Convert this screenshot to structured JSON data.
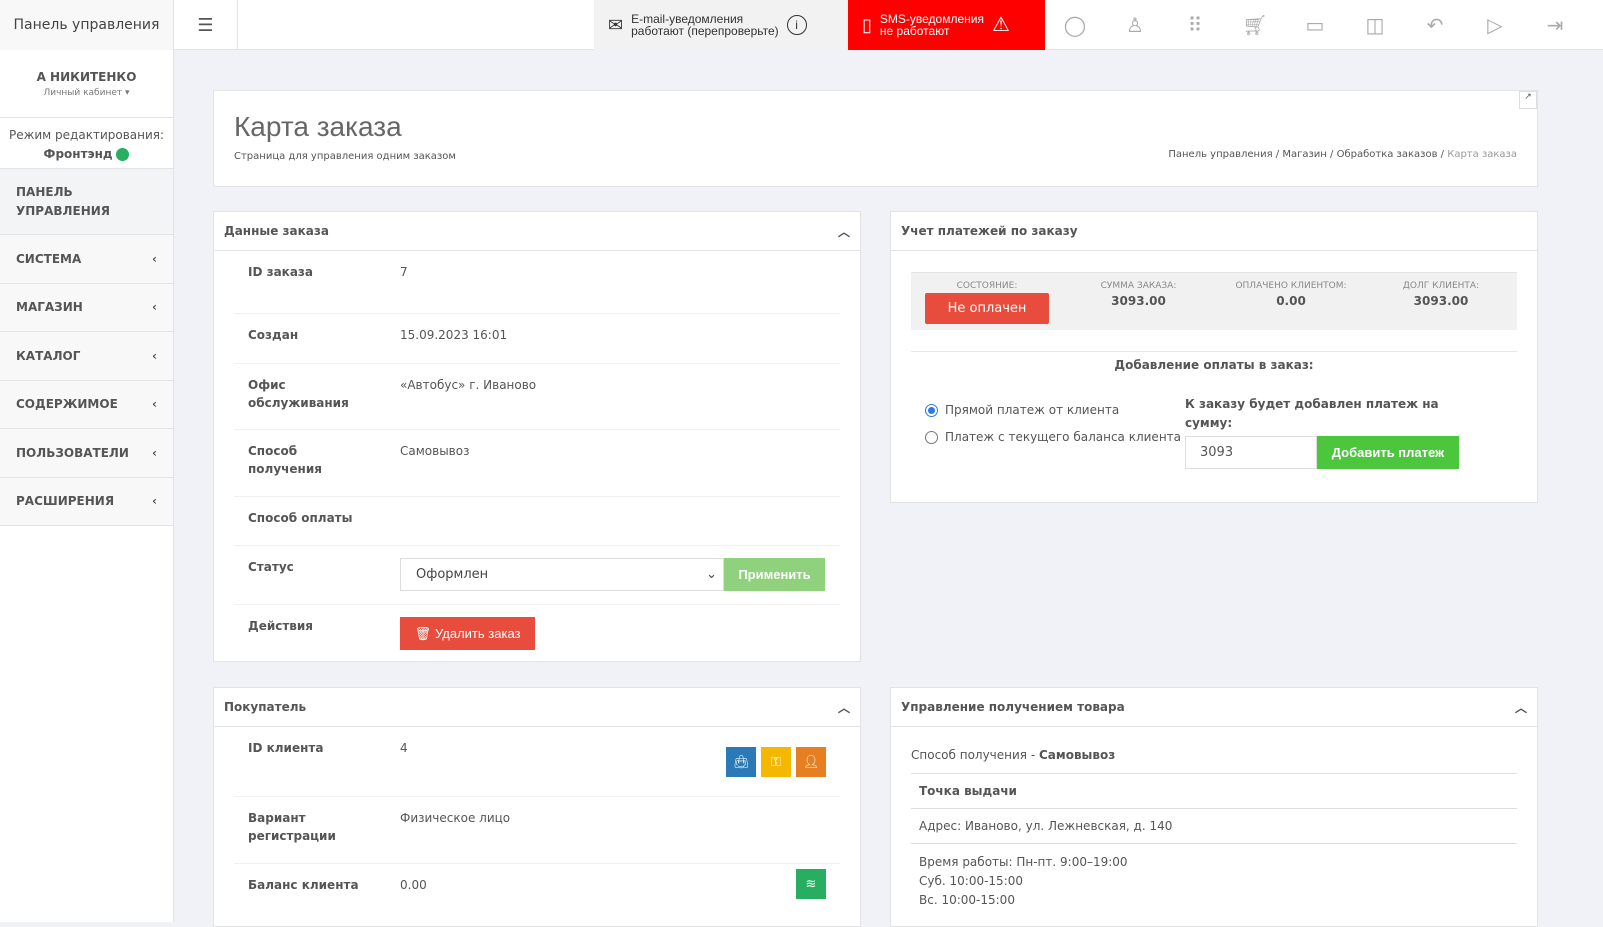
{
  "topbar": {
    "brand": "Панель управления",
    "menu_icon": "hamburger-icon",
    "email_notice": {
      "line1": "E-mail-уведомления",
      "line2": "работают (перепроверьте)"
    },
    "sms_notice": {
      "line1": "SMS-уведомления",
      "line2": "не работают",
      "bg": "#ff0000"
    },
    "icons": [
      "user-icon",
      "add-user-icon",
      "apps-grid-icon",
      "cart-icon",
      "credit-card-icon",
      "bag-icon",
      "back-icon",
      "play-icon",
      "logout-icon"
    ]
  },
  "sidebar": {
    "user": "А НИКИТЕНКО",
    "cabinet": "Личный кабинет",
    "mode_label": "Режим редактирования:",
    "mode_value": "Фронтэнд",
    "items": [
      {
        "label": "ПАНЕЛЬ УПРАВЛЕНИЯ"
      },
      {
        "label": "СИСТЕМА"
      },
      {
        "label": "МАГАЗИН"
      },
      {
        "label": "КАТАЛОГ"
      },
      {
        "label": "СОДЕРЖИМОЕ"
      },
      {
        "label": "ПОЛЬЗОВАТЕЛИ"
      },
      {
        "label": "РАСШИРЕНИЯ"
      }
    ]
  },
  "page": {
    "title": "Карта заказа",
    "subtitle": "Страница для управления одним заказом",
    "breadcrumb": [
      "Панель управления",
      "Магазин",
      "Обработка заказов",
      "Карта заказа"
    ]
  },
  "order": {
    "title": "Данные заказа",
    "rows": [
      {
        "k": "ID заказа",
        "v": "7"
      },
      {
        "k": "Создан",
        "v": "15.09.2023 16:01"
      },
      {
        "k": "Офис обслуживания",
        "v": "«Автобус» г. Иваново"
      },
      {
        "k": "Способ получения",
        "v": "Самовывоз"
      },
      {
        "k": "Способ оплаты",
        "v": ""
      }
    ],
    "status_label": "Статус",
    "status_value": "Оформлен",
    "apply": "Применить",
    "actions_label": "Действия",
    "delete": "Удалить заказ"
  },
  "payments": {
    "title": "Учет платежей по заказу",
    "state_label": "СОСТОЯНИЕ:",
    "state": "Не оплачен",
    "sum_label": "СУММА ЗАКАЗА:",
    "sum": "3093.00",
    "paid_label": "ОПЛАЧЕНО КЛИЕНТОМ:",
    "paid": "0.00",
    "debt_label": "ДОЛГ КЛИЕНТА:",
    "debt": "3093.00",
    "add_title": "Добавление оплаты в заказ:",
    "opt1": "Прямой платеж от клиента",
    "opt2": "Платеж с текущего баланса клиента",
    "amount_label": "К заказу будет добавлен платеж на сумму:",
    "amount": "3093",
    "add_btn": "Добавить платеж"
  },
  "buyer": {
    "title": "Покупатель",
    "rows": [
      {
        "k": "ID клиента",
        "v": "4"
      },
      {
        "k": "Вариант регистрации",
        "v": "Физическое лицо"
      },
      {
        "k": "Баланс клиента",
        "v": "0.00"
      }
    ]
  },
  "delivery": {
    "title": "Управление получением товара",
    "method_prefix": "Способ получения - ",
    "method": "Самовывоз",
    "point_title": "Точка выдачи",
    "address": "Адрес: Иваново, ул. Лежневская, д. 140",
    "hours": [
      "Время работы: Пн-пт. 9:00–19:00",
      "Суб. 10:00-15:00",
      "Вс. 10:00-15:00"
    ]
  }
}
